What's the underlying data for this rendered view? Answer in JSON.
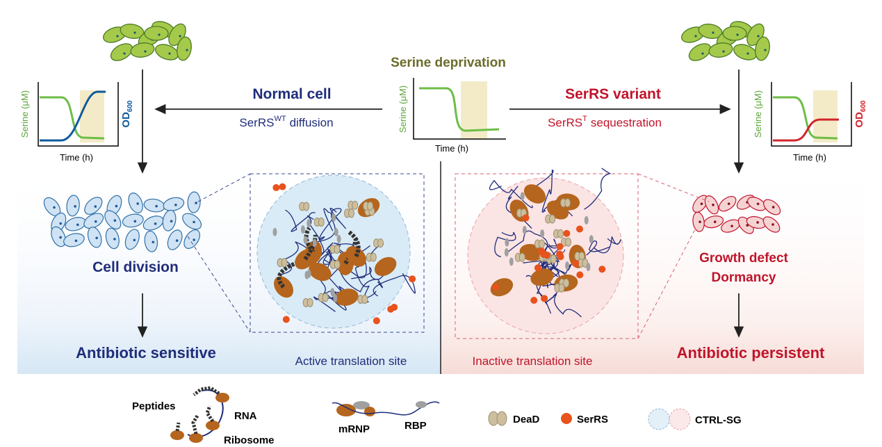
{
  "center": {
    "title": "Serine deprivation",
    "chart": {
      "y_label": "Serine (μM)",
      "x_label": "Time (h)"
    }
  },
  "left": {
    "arrow_title": "Normal cell",
    "arrow_subtitle": {
      "base": "SerRS",
      "sup": "WT",
      "rest": "diffusion"
    },
    "chart": {
      "y_label": "Serine (μM)",
      "x_label": "Time (h)",
      "y2_label": {
        "base": "OD",
        "sub": "600"
      }
    },
    "cell_state": [
      "Cell division"
    ],
    "outcome": "Antibiotic sensitive",
    "site_label": "Active translation site"
  },
  "right": {
    "arrow_title": "SerRS variant",
    "arrow_subtitle": {
      "base": "SerRS",
      "sup": "T",
      "rest": "sequestration"
    },
    "chart": {
      "y_label": "Serine (μM)",
      "x_label": "Time (h)",
      "y2_label": {
        "base": "OD",
        "sub": "600"
      }
    },
    "cell_state": [
      "Growth defect",
      "Dormancy"
    ],
    "outcome": "Antibiotic persistent",
    "site_label": "Inactive translation site"
  },
  "legend": {
    "peptides": "Peptides",
    "rna": "RNA",
    "ribosome": "Ribosome",
    "mrnp": "mRNP",
    "rbp": "RBP",
    "dead": "DeaD",
    "serrs": "SerRS",
    "ctrl_sg": "CTRL-SG"
  }
}
